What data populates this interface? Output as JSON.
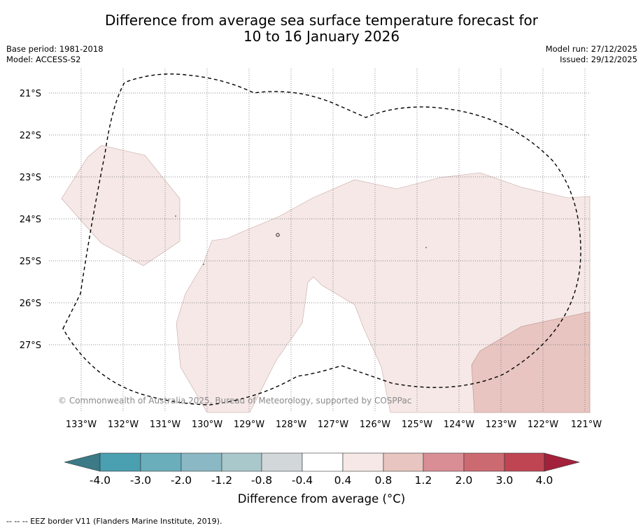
{
  "title_line1": "Difference from average sea surface temperature forecast for",
  "title_line2": "10 to 16 January 2026",
  "meta_left": {
    "base_period": "Base period: 1981-2018",
    "model": "Model: ACCESS-S2"
  },
  "meta_right": {
    "model_run": "Model run: 27/12/2025",
    "issued": "Issued: 29/12/2025"
  },
  "lat_labels": [
    "21°S",
    "22°S",
    "23°S",
    "24°S",
    "25°S",
    "26°S",
    "27°S"
  ],
  "lon_labels": [
    "133°W",
    "132°W",
    "131°W",
    "130°W",
    "129°W",
    "128°W",
    "127°W",
    "126°W",
    "125°W",
    "124°W",
    "123°W",
    "122°W",
    "121°W"
  ],
  "watermark": "© Commonwealth of Australia 2025, Bureau of Meteorology, supported by COSPPac",
  "colorbar": {
    "title": "Difference from average (°C)",
    "tick_labels": [
      "-4.0",
      "-3.0",
      "-2.0",
      "-1.2",
      "-0.8",
      "-0.4",
      "0.4",
      "0.8",
      "1.2",
      "2.0",
      "3.0",
      "4.0"
    ],
    "under_color": "#3b7a86",
    "over_color": "#a3213b",
    "colors": [
      "#4a9fb0",
      "#6aaebc",
      "#8ab8c4",
      "#a8c8cc",
      "#d2d7da",
      "#ffffff",
      "#f5e8e6",
      "#e8c5c0",
      "#d98e96",
      "#cc6a72",
      "#c04553"
    ]
  },
  "anomaly_fill_colors": {
    "light": "#f5e8e6",
    "medium": "#e8c5c0"
  },
  "footnote": "--  --  -- EEZ border V11 (Flanders Marine Institute, 2019)."
}
